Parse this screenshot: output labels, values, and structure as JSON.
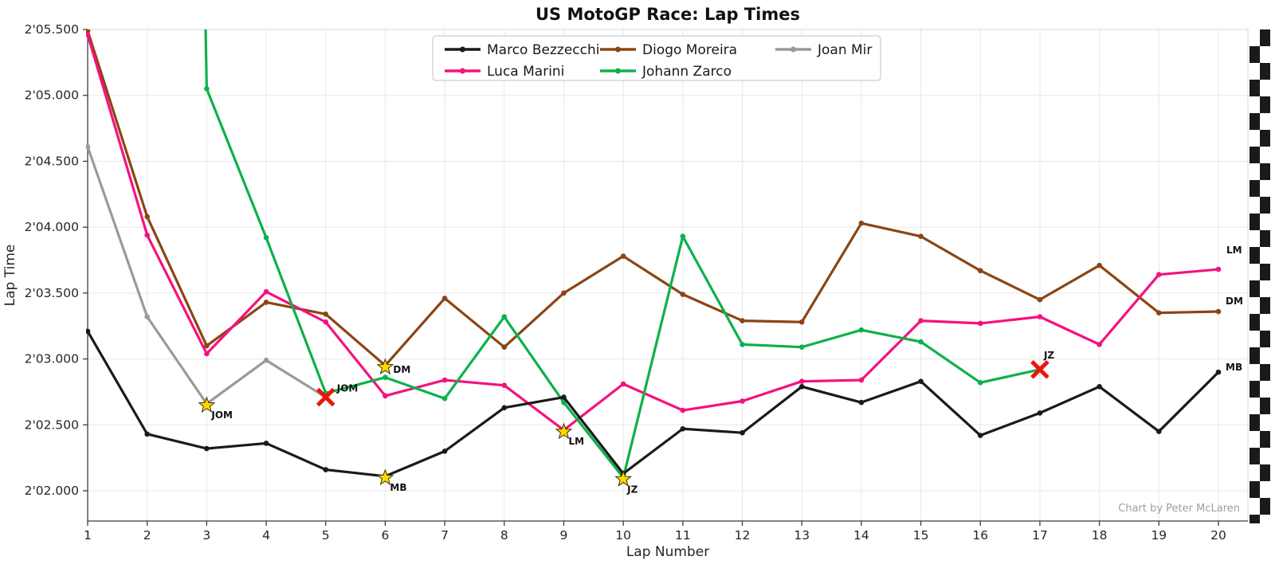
{
  "chart": {
    "title": "US MotoGP Race: Lap Times",
    "xlabel": "Lap Number",
    "ylabel": "Lap Time",
    "credit": "Chart by Peter McLaren"
  },
  "chart_data": {
    "type": "line",
    "x": [
      1,
      2,
      3,
      4,
      5,
      6,
      7,
      8,
      9,
      10,
      11,
      12,
      13,
      14,
      15,
      16,
      17,
      18,
      19,
      20
    ],
    "x_tick_labels": [
      "1",
      "2",
      "3",
      "4",
      "5",
      "6",
      "7",
      "8",
      "9",
      "10",
      "11",
      "12",
      "13",
      "14",
      "15",
      "16",
      "17",
      "18",
      "19",
      "20"
    ],
    "y_ticks_seconds": [
      122.0,
      122.5,
      123.0,
      123.5,
      124.0,
      124.5,
      125.0,
      125.5
    ],
    "y_tick_labels": [
      "2'02.000",
      "2'02.500",
      "2'03.000",
      "2'03.500",
      "2'04.000",
      "2'04.500",
      "2'05.000",
      "2'05.500"
    ],
    "ylim_seconds": [
      121.77,
      125.5
    ],
    "grid": true,
    "legend_position": "top-center",
    "series": [
      {
        "name": "Joan Mir",
        "color": "#9a9a9a",
        "values": [
          124.61,
          123.32,
          122.66,
          122.99,
          122.71,
          null,
          null,
          null,
          null,
          null,
          null,
          null,
          null,
          null,
          null,
          null,
          null,
          null,
          null,
          null
        ],
        "fastest_lap": {
          "lap": 3,
          "label": "JOM",
          "dx": 6,
          "dy": 16
        },
        "retirement": {
          "lap": 5,
          "label": "JOM",
          "dx": 14,
          "dy": -7
        }
      },
      {
        "name": "Diogo Moreira",
        "color": "#8b4513",
        "values": [
          125.49,
          124.08,
          123.1,
          123.43,
          123.34,
          122.95,
          123.46,
          123.09,
          123.5,
          123.78,
          123.49,
          123.29,
          123.28,
          124.03,
          123.93,
          123.67,
          123.45,
          123.71,
          123.35,
          123.36
        ],
        "fastest_lap": {
          "lap": 6,
          "label": "DM",
          "dx": 10,
          "dy": 7
        },
        "end_label": {
          "text": "DM",
          "dx": 9,
          "dy": -9
        }
      },
      {
        "name": "Luca Marini",
        "color": "#f5117f",
        "values": [
          125.46,
          123.94,
          123.04,
          123.51,
          123.28,
          122.72,
          122.84,
          122.8,
          122.46,
          122.81,
          122.61,
          122.68,
          122.83,
          122.84,
          123.29,
          123.27,
          123.32,
          123.11,
          123.64,
          123.68
        ],
        "fastest_lap": {
          "lap": 9,
          "label": "LM",
          "dx": 6,
          "dy": 16
        },
        "end_label": {
          "text": "LM",
          "dx": 10,
          "dy": -20
        }
      },
      {
        "name": "Johann Zarco",
        "color": "#0db14b",
        "values": [
          null,
          null,
          125.05,
          123.92,
          122.74,
          122.86,
          122.7,
          123.32,
          122.67,
          122.1,
          123.93,
          123.11,
          123.09,
          123.22,
          123.13,
          122.82,
          122.92,
          null,
          null,
          null
        ],
        "entry_from_top_at_lap": 3,
        "fastest_lap": {
          "lap": 10,
          "label": "JZ",
          "dx": 5,
          "dy": 17
        },
        "retirement": {
          "lap": 17,
          "label": "JZ",
          "dx": 5,
          "dy": -14
        }
      },
      {
        "name": "Marco Bezzecchi",
        "color": "#1a1a1a",
        "values": [
          123.21,
          122.43,
          122.32,
          122.36,
          122.16,
          122.11,
          122.3,
          122.63,
          122.71,
          122.13,
          122.47,
          122.44,
          122.79,
          122.67,
          122.83,
          122.42,
          122.59,
          122.79,
          122.45,
          122.9
        ],
        "fastest_lap": {
          "lap": 6,
          "label": "MB",
          "dx": 6,
          "dy": 16
        },
        "end_label": {
          "text": "MB",
          "dx": 9,
          "dy": -2
        }
      }
    ],
    "legend_order": [
      "Marco Bezzecchi",
      "Luca Marini",
      "Diogo Moreira",
      "Johann Zarco",
      "Joan Mir"
    ],
    "style": {
      "background": "#ffffff",
      "grid_color": "#e7e7e7",
      "spine_dark": "#3c3c3c",
      "spine_light": "#d4d4d4",
      "tick_text_color": "#262626",
      "star_fill": "#ffd700",
      "star_edge": "#333300",
      "retire_x_color": "#e8160d",
      "annotation_color": "#111111",
      "credit_color": "#a0a0a0",
      "checker_dark": "#1a1a1a"
    }
  }
}
